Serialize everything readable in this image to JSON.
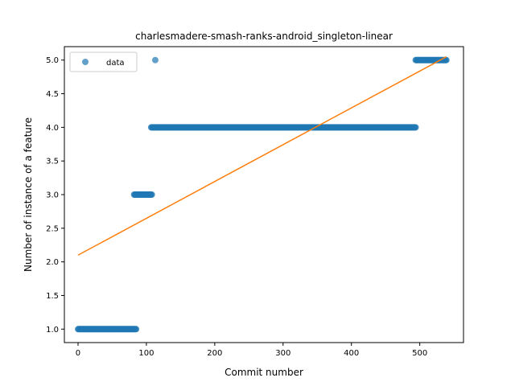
{
  "chart_data": {
    "type": "scatter",
    "title": "charlesmadere-smash-ranks-android_singleton-linear",
    "xlabel": "Commit number",
    "ylabel": "Number of instance of a feature",
    "xlim": [
      -20,
      564
    ],
    "ylim": [
      0.8,
      5.2
    ],
    "xticks": [
      0,
      100,
      200,
      300,
      400,
      500
    ],
    "yticks": [
      1.0,
      1.5,
      2.0,
      2.5,
      3.0,
      3.5,
      4.0,
      4.5,
      5.0
    ],
    "xtick_labels": [
      "0",
      "100",
      "200",
      "300",
      "400",
      "500"
    ],
    "ytick_labels": [
      "1.0",
      "1.5",
      "2.0",
      "2.5",
      "3.0",
      "3.5",
      "4.0",
      "4.5",
      "5.0"
    ],
    "legend": {
      "position": "upper left",
      "entries": [
        "data"
      ]
    },
    "series": [
      {
        "name": "data",
        "kind": "scatter",
        "color": "#1f77b4",
        "segments": [
          {
            "x_start": 0,
            "x_end": 85,
            "y": 1.0
          },
          {
            "x_start": 82,
            "x_end": 108,
            "y": 3.0
          },
          {
            "x_start": 107,
            "x_end": 494,
            "y": 4.0
          },
          {
            "x_start": 113,
            "x_end": 113,
            "y": 5.0
          },
          {
            "x_start": 494,
            "x_end": 539,
            "y": 5.0
          }
        ]
      },
      {
        "kind": "line",
        "color": "#ff7f0e",
        "x": [
          0,
          539
        ],
        "y": [
          2.1,
          5.05
        ]
      }
    ]
  }
}
